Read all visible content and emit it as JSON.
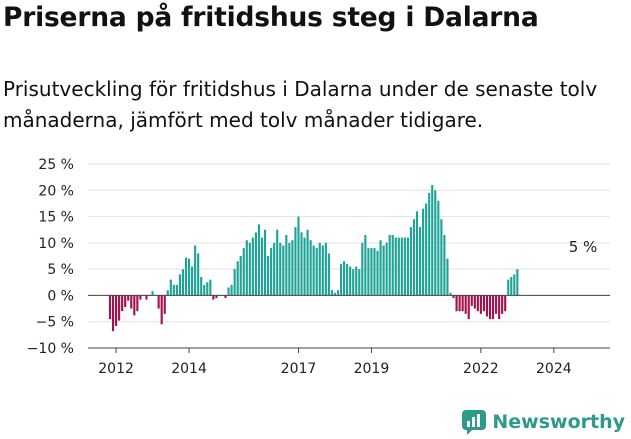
{
  "title": "Priserna på fritidshus steg i Dalarna",
  "subtitle": "Prisutveckling för fritidshus i Dalarna under de senaste tolv månaderna, jämfört med tolv månader tidigare.",
  "brand": "Newsworthy",
  "chart_data": {
    "type": "bar",
    "x_start": "2011-11",
    "x_step": "month",
    "x_ticks": [
      "2012",
      "2014",
      "2017",
      "2019",
      "2022",
      "2024"
    ],
    "y_ticks": [
      "25 %",
      "20 %",
      "15 %",
      "10 %",
      "5 %",
      "0 %",
      "−5 %",
      "−10 %"
    ],
    "ylim": [
      -10,
      25
    ],
    "grid": true,
    "annotation": "5 %",
    "colors": {
      "positive": "#1fa397",
      "negative": "#a3124f",
      "grid": "#e2e2e2",
      "axis": "#444444",
      "text": "#222222"
    },
    "values": [
      -4.5,
      -6.8,
      -5.8,
      -4.8,
      -3.0,
      -2.2,
      -1.0,
      -2.5,
      -3.8,
      -3.0,
      -0.8,
      0.0,
      -0.8,
      0.0,
      0.8,
      0.0,
      -2.5,
      -5.5,
      -3.5,
      1.0,
      3.0,
      2.0,
      2.0,
      4.0,
      5.0,
      7.2,
      7.0,
      5.5,
      9.5,
      8.0,
      3.5,
      2.0,
      2.5,
      3.0,
      -0.8,
      -0.5,
      0.0,
      0.0,
      -0.5,
      1.5,
      2.0,
      5.0,
      6.5,
      7.5,
      9.0,
      10.5,
      10.0,
      11.0,
      12.0,
      13.5,
      11.0,
      12.5,
      7.5,
      9.0,
      10.0,
      12.5,
      10.0,
      9.5,
      11.5,
      10.0,
      10.5,
      13.0,
      15.0,
      12.0,
      11.0,
      12.5,
      10.5,
      9.5,
      9.0,
      10.0,
      9.5,
      10.0,
      8.0,
      1.0,
      0.5,
      1.0,
      6.0,
      6.5,
      6.0,
      5.5,
      5.0,
      5.5,
      5.0,
      10.0,
      11.5,
      9.0,
      9.0,
      9.0,
      8.5,
      10.5,
      9.5,
      10.0,
      11.5,
      11.5,
      11.0,
      11.0,
      11.0,
      11.0,
      11.0,
      13.0,
      14.5,
      16.0,
      13.0,
      16.5,
      17.5,
      19.5,
      21.0,
      20.0,
      18.0,
      14.5,
      11.5,
      7.0,
      0.5,
      -0.5,
      -3.0,
      -3.0,
      -3.0,
      -3.5,
      -4.5,
      -2.0,
      -2.5,
      -3.0,
      -3.5,
      -3.0,
      -4.0,
      -4.5,
      -4.5,
      -3.5,
      -4.5,
      -3.5,
      -3.0,
      3.0,
      3.5,
      4.0,
      5.0
    ]
  }
}
